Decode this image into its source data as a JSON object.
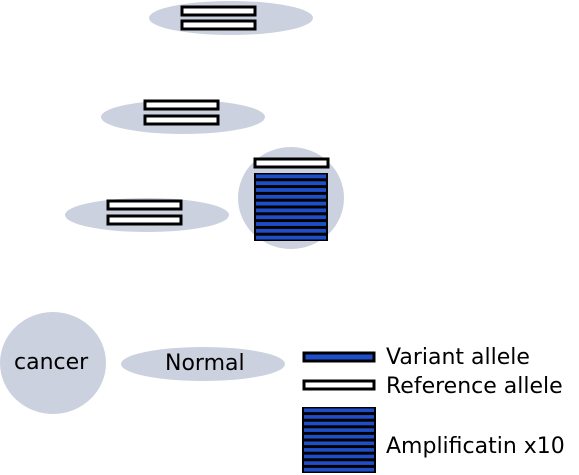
{
  "colors": {
    "cell_fill": "#ccd1df",
    "variant_allele": "#1f4fc8",
    "reference_allele": "#ffffff",
    "outline": "#000000"
  },
  "cells": {
    "cancer_label": "cancer",
    "normal_label": "Normal"
  },
  "legend": {
    "variant_label": "Variant allele",
    "reference_label": "Reference allele",
    "amplification_label": "Amplificatin x10"
  }
}
